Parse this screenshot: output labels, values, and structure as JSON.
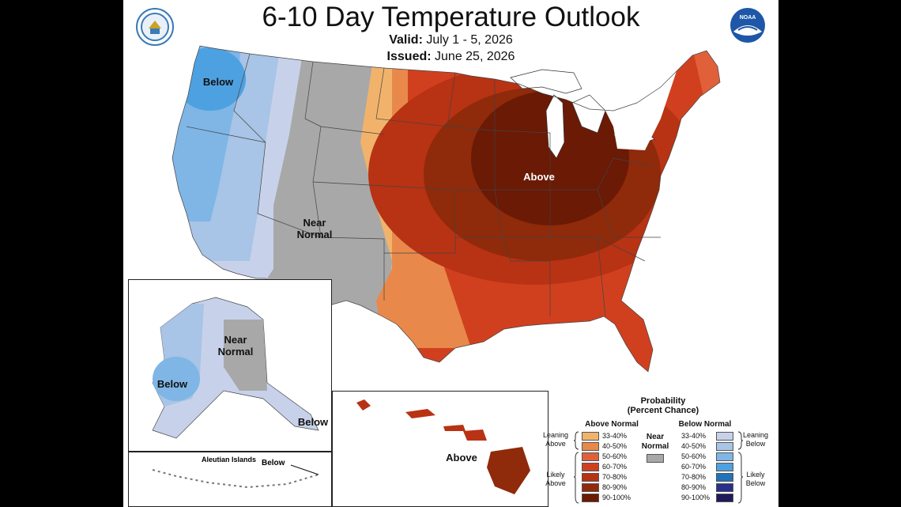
{
  "header": {
    "title": "6-10 Day Temperature Outlook",
    "valid_label": "Valid:",
    "valid_value": "July 1 - 5, 2026",
    "issued_label": "Issued:",
    "issued_value": "June 25, 2026"
  },
  "logos": {
    "left": "doc-seal-icon",
    "right": "noaa-logo-icon",
    "noaa_text": "NOAA"
  },
  "map_labels": {
    "conus_below": "Below",
    "conus_near_normal": "Near\nNormal",
    "conus_above": "Above",
    "alaska_near_normal": "Near\nNormal",
    "alaska_below": "Below",
    "alaska_panhandle_below": "Below",
    "aleutian_title": "Aleutian Islands",
    "aleutian_below": "Below",
    "hawaii_above": "Above"
  },
  "legend": {
    "title": "Probability",
    "subtitle": "(Percent Chance)",
    "above_header": "Above Normal",
    "below_header": "Below Normal",
    "near_normal": "Near\nNormal",
    "leaning_above": "Leaning\nAbove",
    "likely_above": "Likely\nAbove",
    "leaning_below": "Leaning\nBelow",
    "likely_below": "Likely\nBelow",
    "ranges": [
      "33-40%",
      "40-50%",
      "50-60%",
      "60-70%",
      "70-80%",
      "80-90%",
      "90-100%"
    ],
    "above_colors": [
      "#F1B36B",
      "#E8894B",
      "#E0603A",
      "#D0401F",
      "#B83214",
      "#8F2A0A",
      "#6A1A05"
    ],
    "below_colors": [
      "#C7D2EA",
      "#A8C4E6",
      "#7FB6E6",
      "#4EA1E0",
      "#2472B8",
      "#2A2F8A",
      "#201A5A"
    ],
    "near_color": "#A8A8A8"
  }
}
